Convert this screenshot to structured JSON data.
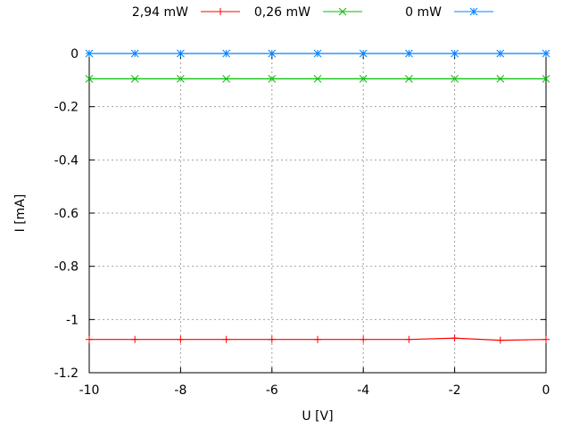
{
  "chart_data": {
    "type": "line",
    "xlabel": "U [V]",
    "ylabel": "I [mA]",
    "xlim": [
      -10,
      0
    ],
    "ylim": [
      -1.2,
      0
    ],
    "xticks": [
      -10,
      -8,
      -6,
      -4,
      -2,
      0
    ],
    "yticks": [
      0,
      -0.2,
      -0.4,
      -0.6,
      -0.8,
      -1,
      -1.2
    ],
    "grid": true,
    "legend_position": "top",
    "x": [
      -10,
      -9,
      -8,
      -7,
      -6,
      -5,
      -4,
      -3,
      -2,
      -1,
      0
    ],
    "series": [
      {
        "name": "2,94 mW",
        "color": "#ff0000",
        "marker": "plus",
        "values": [
          -1.075,
          -1.075,
          -1.075,
          -1.075,
          -1.075,
          -1.075,
          -1.075,
          -1.075,
          -1.07,
          -1.078,
          -1.075
        ]
      },
      {
        "name": "0,26 mW",
        "color": "#00c000",
        "marker": "cross",
        "values": [
          -0.095,
          -0.095,
          -0.095,
          -0.095,
          -0.095,
          -0.095,
          -0.095,
          -0.095,
          -0.095,
          -0.095,
          -0.095
        ]
      },
      {
        "name": "0 mW",
        "color": "#0080ff",
        "marker": "star",
        "values": [
          0,
          0,
          0,
          0,
          0,
          0,
          0,
          0,
          0,
          0,
          0
        ]
      }
    ]
  }
}
